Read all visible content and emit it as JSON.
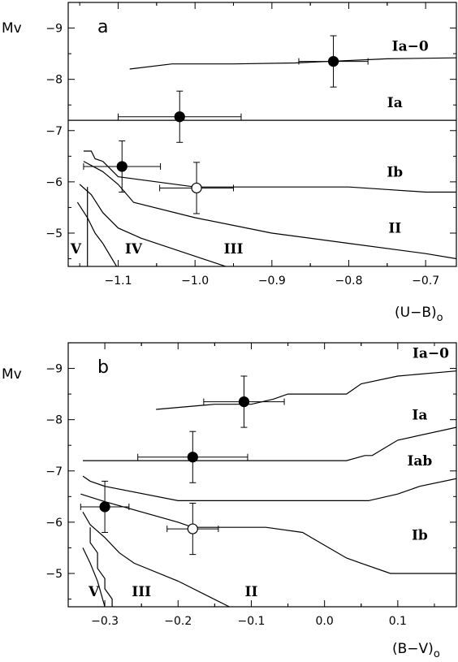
{
  "chart_data": [
    {
      "type": "line",
      "panel_label": "a",
      "ylabel": "Mv",
      "xlabel": "(U−B)",
      "xlabel_sub": "o",
      "xlim": [
        -1.165,
        -0.66
      ],
      "ylim": [
        -4.35,
        -9.5
      ],
      "xticks": [
        -1.1,
        -1.0,
        -0.9,
        -0.8,
        -0.7
      ],
      "xtick_labels": [
        "−1.1",
        "−1.0",
        "−0.9",
        "−0.8",
        "−0.7"
      ],
      "yticks": [
        -5,
        -6,
        -7,
        -8,
        -9
      ],
      "ytick_labels": [
        "−5",
        "−6",
        "−7",
        "−8",
        "−9"
      ],
      "region_labels": [
        {
          "text": "Ia−0",
          "x": -0.72,
          "y": -8.65
        },
        {
          "text": "Ia",
          "x": -0.74,
          "y": -7.55
        },
        {
          "text": "Ib",
          "x": -0.74,
          "y": -6.2
        },
        {
          "text": "II",
          "x": -0.74,
          "y": -5.1
        },
        {
          "text": "V",
          "x": -1.155,
          "y": -4.7
        },
        {
          "text": "IV",
          "x": -1.08,
          "y": -4.7
        },
        {
          "text": "III",
          "x": -0.95,
          "y": -4.7
        }
      ],
      "boundaries": [
        {
          "x": [
            -1.085,
            -1.03,
            -0.95,
            -0.87,
            -0.75,
            -0.66
          ],
          "y": [
            -8.2,
            -8.3,
            -8.3,
            -8.32,
            -8.4,
            -8.42
          ]
        },
        {
          "x": [
            -1.165,
            -0.66
          ],
          "y": [
            -7.2,
            -7.2
          ]
        },
        {
          "x": [
            -1.145,
            -1.135,
            -1.13,
            -1.12,
            -1.1,
            -1.0,
            -0.9,
            -0.8,
            -0.75,
            -0.7,
            -0.66
          ],
          "y": [
            -6.6,
            -6.6,
            -6.45,
            -6.4,
            -6.1,
            -5.9,
            -5.9,
            -5.9,
            -5.85,
            -5.8,
            -5.8
          ]
        },
        {
          "x": [
            -1.145,
            -1.12,
            -1.1,
            -1.08,
            -1.0,
            -0.9,
            -0.8,
            -0.7,
            -0.66
          ],
          "y": [
            -6.4,
            -6.2,
            -5.95,
            -5.6,
            -5.3,
            -5.0,
            -4.8,
            -4.6,
            -4.5
          ]
        },
        {
          "x": [
            -1.15,
            -1.135,
            -1.12,
            -1.1,
            -1.07,
            -1.0,
            -0.95
          ],
          "y": [
            -5.95,
            -5.75,
            -5.4,
            -5.1,
            -4.9,
            -4.55,
            -4.3
          ]
        },
        {
          "x": [
            -1.153,
            -1.14,
            -1.13,
            -1.12,
            -1.1
          ],
          "y": [
            -5.6,
            -5.3,
            -5.0,
            -4.8,
            -4.3
          ]
        },
        {
          "x": [
            -1.14,
            -1.14
          ],
          "y": [
            -5.9,
            -4.3
          ]
        }
      ],
      "points": [
        {
          "x": -0.82,
          "y": -8.35,
          "xerr": 0.045,
          "yerr": 0.5,
          "filled": true
        },
        {
          "x": -1.02,
          "y": -7.27,
          "xerr": 0.08,
          "yerr": 0.5,
          "filled": true
        },
        {
          "x": -1.095,
          "y": -6.3,
          "xerr": 0.05,
          "yerr": 0.5,
          "filled": true
        },
        {
          "x": -0.998,
          "y": -5.88,
          "xerr": 0.048,
          "yerr": 0.5,
          "filled": false
        }
      ]
    },
    {
      "type": "line",
      "panel_label": "b",
      "ylabel": "Mv",
      "xlabel": "(B−V)",
      "xlabel_sub": "o",
      "xlim": [
        -0.35,
        0.18
      ],
      "ylim": [
        -4.35,
        -9.5
      ],
      "xticks": [
        -0.3,
        -0.2,
        -0.1,
        0.0,
        0.1
      ],
      "xtick_labels": [
        "−0.3",
        "−0.2",
        "−0.1",
        "0.0",
        "0.1"
      ],
      "yticks": [
        -5,
        -6,
        -7,
        -8,
        -9
      ],
      "ytick_labels": [
        "−5",
        "−6",
        "−7",
        "−8",
        "−9"
      ],
      "region_labels": [
        {
          "text": "Ia−0",
          "x": 0.145,
          "y": -9.3
        },
        {
          "text": "Ia",
          "x": 0.13,
          "y": -8.1
        },
        {
          "text": "Iab",
          "x": 0.13,
          "y": -7.2
        },
        {
          "text": "Ib",
          "x": 0.13,
          "y": -5.75
        },
        {
          "text": "V",
          "x": -0.315,
          "y": -4.65
        },
        {
          "text": "III",
          "x": -0.25,
          "y": -4.65
        },
        {
          "text": "II",
          "x": -0.1,
          "y": -4.65
        }
      ],
      "boundaries": [
        {
          "x": [
            -0.23,
            -0.15,
            -0.1,
            -0.07,
            -0.05,
            -0.03,
            0.03,
            0.05,
            0.1,
            0.18
          ],
          "y": [
            -8.2,
            -8.3,
            -8.3,
            -8.4,
            -8.5,
            -8.5,
            -8.5,
            -8.7,
            -8.85,
            -8.95
          ]
        },
        {
          "x": [
            -0.33,
            0.03,
            0.055,
            0.065,
            0.1,
            0.18
          ],
          "y": [
            -7.2,
            -7.2,
            -7.3,
            -7.3,
            -7.6,
            -7.85
          ]
        },
        {
          "x": [
            -0.33,
            -0.32,
            -0.3,
            -0.2,
            0.06,
            0.1,
            0.13,
            0.18
          ],
          "y": [
            -6.9,
            -6.8,
            -6.7,
            -6.42,
            -6.42,
            -6.55,
            -6.7,
            -6.85
          ]
        },
        {
          "x": [
            -0.333,
            -0.3,
            -0.2,
            -0.18,
            -0.08,
            -0.03,
            0.03,
            0.05,
            0.09,
            0.18
          ],
          "y": [
            -6.55,
            -6.4,
            -6.0,
            -5.9,
            -5.9,
            -5.8,
            -5.3,
            -5.2,
            -5.0,
            -5.0
          ]
        },
        {
          "x": [
            -0.33,
            -0.32,
            -0.3,
            -0.28,
            -0.26,
            -0.2,
            -0.13
          ],
          "y": [
            -6.2,
            -5.95,
            -5.7,
            -5.4,
            -5.2,
            -4.85,
            -4.35
          ]
        },
        {
          "x": [
            -0.33,
            -0.32,
            -0.31,
            -0.3
          ],
          "y": [
            -5.5,
            -5.2,
            -4.85,
            -4.35
          ]
        },
        {
          "x": [
            -0.32,
            -0.32,
            -0.31,
            -0.31,
            -0.3,
            -0.3,
            -0.29,
            -0.29
          ],
          "y": [
            -5.9,
            -5.6,
            -5.4,
            -5.1,
            -4.9,
            -4.7,
            -4.5,
            -4.35
          ]
        }
      ],
      "points": [
        {
          "x": -0.11,
          "y": -8.35,
          "xerr": 0.055,
          "yerr": 0.5,
          "filled": true
        },
        {
          "x": -0.18,
          "y": -7.27,
          "xerr": 0.075,
          "yerr": 0.5,
          "filled": true
        },
        {
          "x": -0.3,
          "y": -6.3,
          "xerr": 0.033,
          "yerr": 0.5,
          "filled": true
        },
        {
          "x": -0.18,
          "y": -5.87,
          "xerr": 0.035,
          "yerr": 0.5,
          "filled": false
        }
      ]
    }
  ]
}
